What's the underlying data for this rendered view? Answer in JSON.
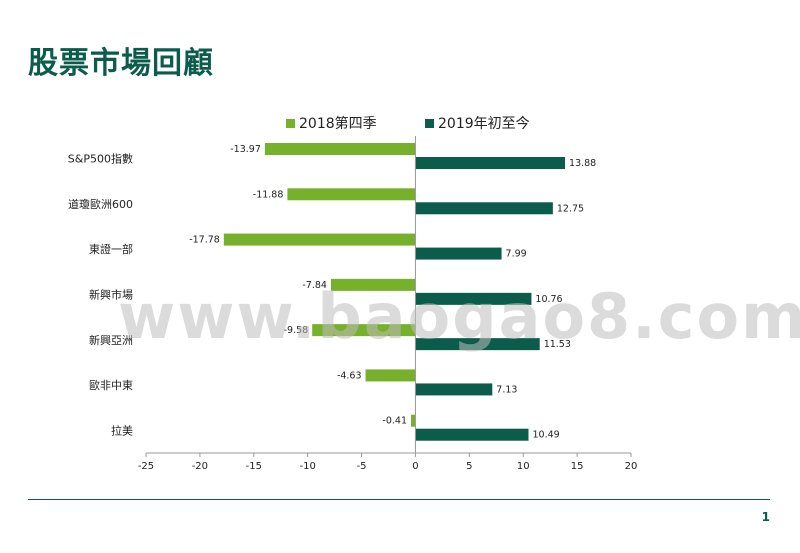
{
  "title": "股票市場回顧",
  "page_number": "1",
  "watermark": "www.baogao8.com",
  "colors": {
    "series_2018q4": "#77b02a",
    "series_2019ytd": "#0b5c4b",
    "title": "#0b5c4b"
  },
  "chart_data": {
    "type": "bar",
    "orientation": "horizontal",
    "categories": [
      "S&P500指數",
      "道瓊歐洲600",
      "東證一部",
      "新興市場",
      "新興亞洲",
      "歐非中東",
      "拉美"
    ],
    "series": [
      {
        "name": "2018第四季",
        "values": [
          -13.97,
          -11.88,
          -17.78,
          -7.84,
          -9.58,
          -4.63,
          -0.41
        ],
        "labels": [
          "-13.97",
          "-11.88",
          "-17.78",
          "-7.84",
          "-9.58",
          "-4.63",
          "-0.41"
        ]
      },
      {
        "name": "2019年初至今",
        "values": [
          13.88,
          12.75,
          7.99,
          10.76,
          11.53,
          7.13,
          10.49
        ],
        "labels": [
          "13.88",
          "12.75",
          "7.99",
          "10.76",
          "11.53",
          "7.13",
          "10.49"
        ]
      }
    ],
    "xlim": [
      -25,
      20
    ],
    "xticks": [
      "-25",
      "-20",
      "-15",
      "-10",
      "-5",
      "0",
      "5",
      "10",
      "15",
      "20"
    ],
    "xlabel": "",
    "ylabel": "",
    "legend": "top",
    "grid": false
  }
}
